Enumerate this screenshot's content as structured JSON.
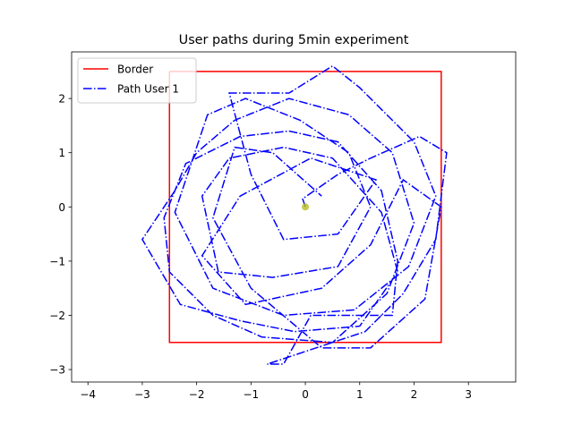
{
  "chart_data": {
    "type": "line",
    "title": "User paths during 5min experiment",
    "xlim": [
      -4.3,
      3.87
    ],
    "ylim": [
      -3.23,
      2.86
    ],
    "xticks": [
      {
        "value": -4,
        "label": "−4"
      },
      {
        "value": -3,
        "label": "−3"
      },
      {
        "value": -2,
        "label": "−2"
      },
      {
        "value": -1,
        "label": "−1"
      },
      0,
      1,
      2,
      3
    ],
    "yticks": [
      {
        "value": -3,
        "label": "−3"
      },
      {
        "value": -2,
        "label": "−2"
      },
      {
        "value": -1,
        "label": "−1"
      },
      0,
      1,
      2
    ],
    "legend": "upper left",
    "series": [
      {
        "name": "Border",
        "color": "#ff0000",
        "style": "solid",
        "x": [
          -2.5,
          2.5,
          2.5,
          -2.5,
          -2.5
        ],
        "values": [
          2.5,
          2.5,
          -2.5,
          -2.5,
          2.5
        ]
      },
      {
        "name": "Path User 1",
        "color": "#0000ff",
        "style": "dashdot",
        "x": [
          0,
          -0.05,
          0.6,
          1.2,
          2.1,
          2.6,
          2.4,
          1.8,
          1.1,
          0.2,
          -0.7,
          -0.4,
          0.1,
          1.6,
          1.7,
          1.4,
          0.6,
          -0.3,
          -1.2,
          -2.2,
          -2.6,
          -2.5,
          -1.7,
          -0.8,
          0.5,
          1.5,
          2.0,
          1.6,
          0.8,
          -0.3,
          -1.3,
          -2.0,
          -2.4,
          -3.0,
          -2.3,
          -1.2,
          -0.2,
          1.0,
          1.7,
          1.4,
          0.5,
          -0.4,
          -1.4,
          -1.9,
          -1.6,
          -0.6,
          0.6,
          1.2,
          0.8,
          -0.1,
          -1.1,
          -1.8,
          -2.4,
          -1.7,
          -0.4,
          0.9,
          1.9,
          2.4,
          2.0,
          1.0,
          0.5,
          -0.3,
          -1.4,
          -1.0,
          -0.4,
          0.6,
          1.3,
          0.1,
          -1.2,
          -1.9,
          -1.1,
          0.3,
          1.2,
          1.8,
          2.5,
          2.2,
          1.2,
          0.3,
          -1.0,
          -1.7,
          -1.3,
          -0.6,
          0.3
        ],
        "values": [
          0,
          0.15,
          0.6,
          0.9,
          1.3,
          1.0,
          -0.6,
          -1.6,
          -2.3,
          -2.6,
          -2.9,
          -2.9,
          -2.0,
          -2.0,
          -1.0,
          0.3,
          1.2,
          1.4,
          1.3,
          0.8,
          -0.2,
          -1.2,
          -2.0,
          -2.4,
          -2.5,
          -1.6,
          -0.3,
          1.0,
          1.7,
          2.0,
          1.6,
          1.0,
          0.3,
          -0.6,
          -1.8,
          -2.1,
          -2.3,
          -2.2,
          -1.2,
          -0.1,
          0.9,
          1.1,
          0.9,
          0.2,
          -1.2,
          -1.3,
          -1.1,
          0.0,
          1.0,
          1.6,
          2.0,
          1.7,
          -0.1,
          -1.5,
          -2.0,
          -1.9,
          -1.1,
          0.2,
          1.2,
          2.2,
          2.6,
          2.1,
          2.1,
          0.6,
          -0.6,
          -0.5,
          0.5,
          0.9,
          0.2,
          -0.9,
          -1.8,
          -1.5,
          -0.7,
          0.5,
          0.0,
          -1.7,
          -2.6,
          -2.6,
          -1.5,
          -0.2,
          1.1,
          1.0,
          0.2
        ]
      }
    ],
    "start_point": {
      "x": 0,
      "y": 0,
      "color": "#bcbd22"
    }
  }
}
